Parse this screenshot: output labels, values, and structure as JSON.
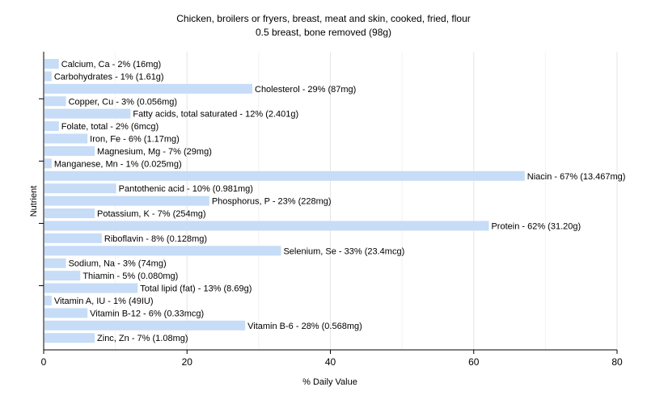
{
  "chart_data": {
    "type": "bar",
    "orientation": "horizontal",
    "title": "Chicken, broilers or fryers, breast, meat and skin, cooked, fried, flour",
    "subtitle": "0.5 breast, bone removed (98g)",
    "xlabel": "% Daily Value",
    "ylabel": "Nutrient",
    "xlim": [
      0,
      80
    ],
    "xticks": [
      0,
      20,
      40,
      60,
      80
    ],
    "grid": true,
    "bar_color": "#c6dcf7",
    "categories": [
      "Calcium, Ca",
      "Carbohydrates",
      "Cholesterol",
      "Copper, Cu",
      "Fatty acids, total saturated",
      "Folate, total",
      "Iron, Fe",
      "Magnesium, Mg",
      "Manganese, Mn",
      "Niacin",
      "Pantothenic acid",
      "Phosphorus, P",
      "Potassium, K",
      "Protein",
      "Riboflavin",
      "Selenium, Se",
      "Sodium, Na",
      "Thiamin",
      "Total lipid (fat)",
      "Vitamin A, IU",
      "Vitamin B-12",
      "Vitamin B-6",
      "Zinc, Zn"
    ],
    "values": [
      2,
      1,
      29,
      3,
      12,
      2,
      6,
      7,
      1,
      67,
      10,
      23,
      7,
      62,
      8,
      33,
      3,
      5,
      13,
      1,
      6,
      28,
      7
    ],
    "labels": [
      "Calcium, Ca - 2% (16mg)",
      "Carbohydrates - 1% (1.61g)",
      "Cholesterol - 29% (87mg)",
      "Copper, Cu - 3% (0.056mg)",
      "Fatty acids, total saturated - 12% (2.401g)",
      "Folate, total - 2% (6mcg)",
      "Iron, Fe - 6% (1.17mg)",
      "Magnesium, Mg - 7% (29mg)",
      "Manganese, Mn - 1% (0.025mg)",
      "Niacin - 67% (13.467mg)",
      "Pantothenic acid - 10% (0.981mg)",
      "Phosphorus, P - 23% (228mg)",
      "Potassium, K - 7% (254mg)",
      "Protein - 62% (31.20g)",
      "Riboflavin - 8% (0.128mg)",
      "Selenium, Se - 33% (23.4mcg)",
      "Sodium, Na - 3% (74mg)",
      "Thiamin - 5% (0.080mg)",
      "Total lipid (fat) - 13% (8.69g)",
      "Vitamin A, IU - 1% (49IU)",
      "Vitamin B-12 - 6% (0.33mcg)",
      "Vitamin B-6 - 28% (0.568mg)",
      "Zinc, Zn - 7% (1.08mg)"
    ]
  }
}
